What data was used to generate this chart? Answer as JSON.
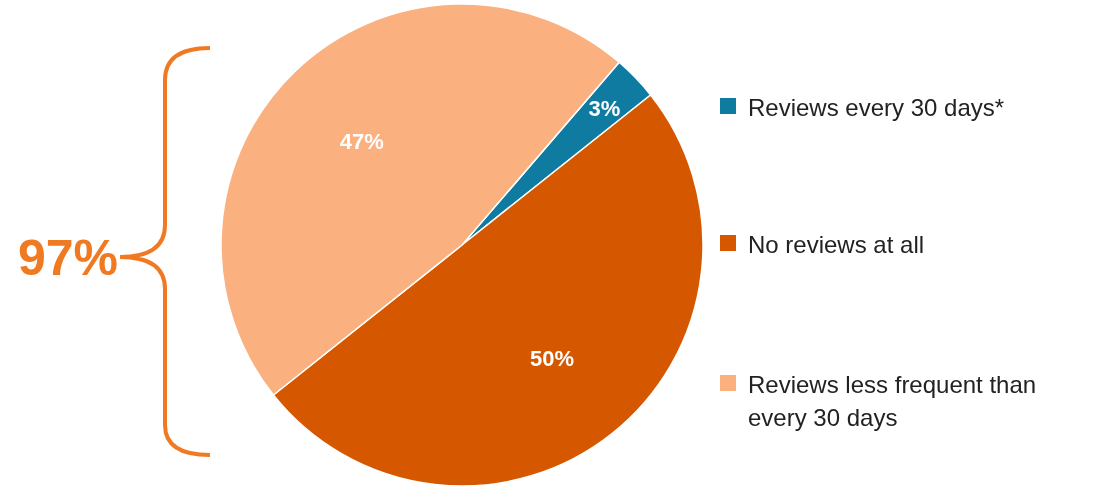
{
  "chart_data": {
    "type": "pie",
    "categories": [
      "Reviews every 30 days*",
      "No reviews at all",
      "Reviews less frequent than every 30 days"
    ],
    "values": [
      3,
      50,
      47
    ],
    "colors": [
      "#0f7ba1",
      "#d55800",
      "#fbb07f"
    ],
    "value_labels": [
      "3%",
      "50%",
      "47%"
    ],
    "legend": "right",
    "annotations": [
      "97%"
    ]
  }
}
